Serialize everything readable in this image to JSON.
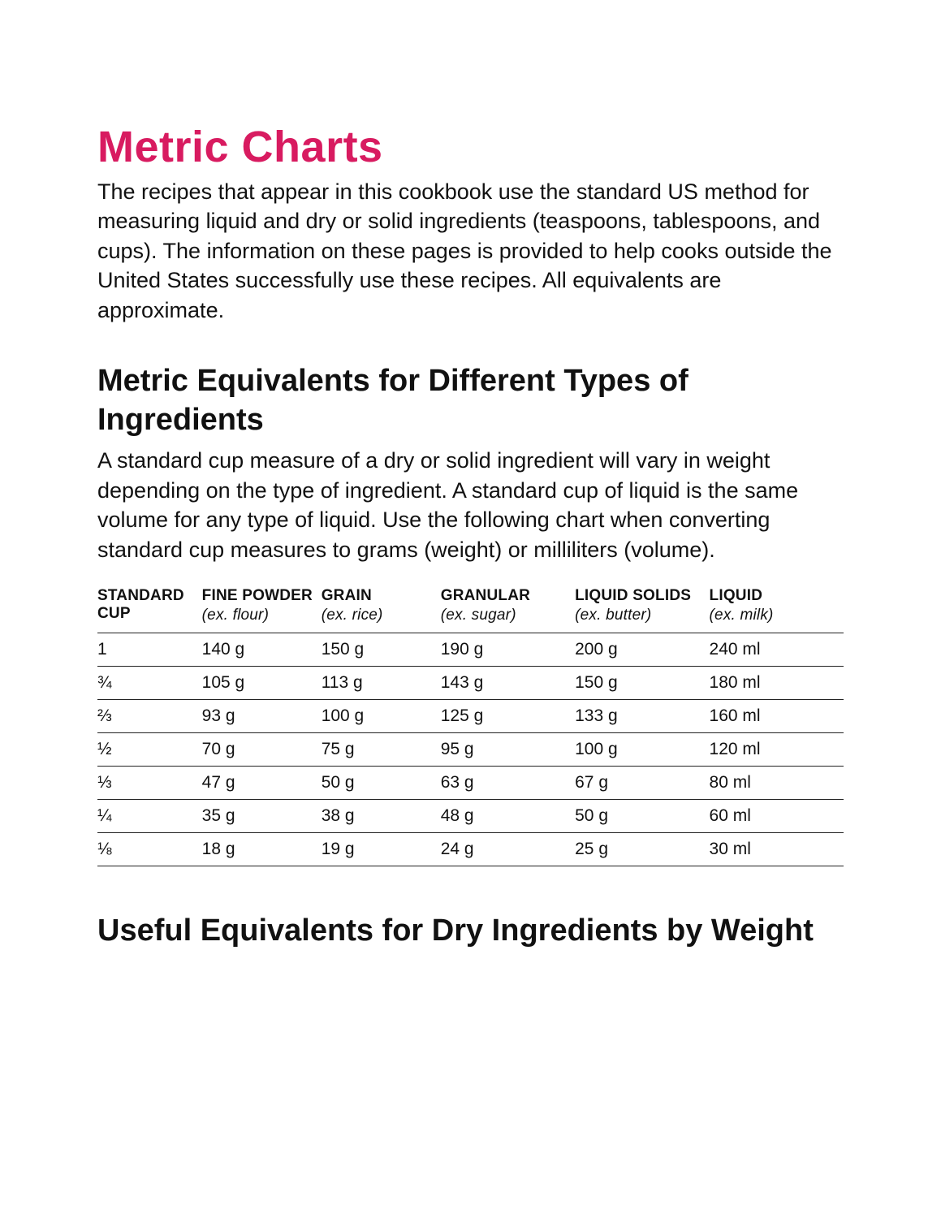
{
  "colors": {
    "accent": "#d81b60",
    "text": "#111111",
    "rule": "#222222",
    "background": "#ffffff"
  },
  "title": "Metric Charts",
  "intro": "The recipes that appear in this cookbook use the standard US method for measuring liquid and dry or solid ingredients (teaspoons, tablespoons, and cups). The information on these pages is provided to help cooks outside the United States successfully use these recipes. All equivalents are approximate.",
  "section1": {
    "heading": "Metric Equivalents for Different Types of Ingredients",
    "intro": "A standard cup measure of a dry or solid ingredient will vary in weight depending on the type of ingredient. A standard cup of liquid is the same volume for any type of liquid. Use the following chart when converting standard cup measures to grams (weight) or milliliters (volume).",
    "table": {
      "columns": [
        {
          "label": "STANDARD CUP",
          "sub": ""
        },
        {
          "label": "FINE POWDER",
          "sub": "(ex. flour)"
        },
        {
          "label": "GRAIN",
          "sub": "(ex. rice)"
        },
        {
          "label": "GRANULAR",
          "sub": "(ex. sugar)"
        },
        {
          "label": "LIQUID SOLIDS",
          "sub": "(ex. butter)"
        },
        {
          "label": "LIQUID",
          "sub": "(ex. milk)"
        }
      ],
      "rows": [
        [
          "1",
          "140 g",
          "150 g",
          "190 g",
          "200 g",
          "240 ml"
        ],
        [
          "¾",
          "105 g",
          "113 g",
          "143 g",
          "150 g",
          "180 ml"
        ],
        [
          "⅔",
          "93 g",
          "100 g",
          "125 g",
          "133 g",
          "160 ml"
        ],
        [
          "½",
          "70 g",
          "75 g",
          "95 g",
          "100 g",
          "120 ml"
        ],
        [
          "⅓",
          "47 g",
          "50 g",
          "63 g",
          "67 g",
          "80 ml"
        ],
        [
          "¼",
          "35 g",
          "38 g",
          "48 g",
          "50 g",
          "60 ml"
        ],
        [
          "⅛",
          "18 g",
          "19 g",
          "24 g",
          "25 g",
          "30 ml"
        ]
      ]
    }
  },
  "section2": {
    "heading": "Useful Equivalents for Dry Ingredients by Weight"
  }
}
